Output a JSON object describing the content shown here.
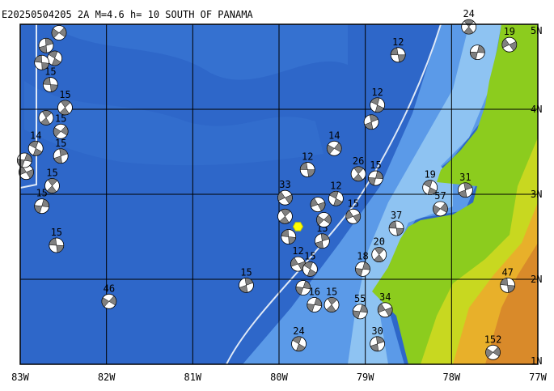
{
  "title": "E20250504205 2A  M=4.6  h=  10  SOUTH OF PANAMA",
  "lon_ticks": [
    {
      "value": -83,
      "label": "83W"
    },
    {
      "value": -82,
      "label": "82W"
    },
    {
      "value": -81,
      "label": "81W"
    },
    {
      "value": -80,
      "label": "80W"
    },
    {
      "value": -79,
      "label": "79W"
    },
    {
      "value": -78,
      "label": "78W"
    },
    {
      "value": -77,
      "label": "77W"
    }
  ],
  "lat_ticks": [
    {
      "value": 5,
      "label": "5N"
    },
    {
      "value": 4,
      "label": "4N"
    },
    {
      "value": 3,
      "label": "3N"
    },
    {
      "value": 2,
      "label": "2N"
    },
    {
      "value": 1,
      "label": "1N"
    }
  ],
  "lon_range": [
    -83,
    -77
  ],
  "lat_range": [
    1,
    5
  ],
  "epicenter": {
    "lon": -79.78,
    "lat": 2.62
  },
  "events": [
    {
      "lon": -78.62,
      "lat": 4.64,
      "depth": 12
    },
    {
      "lon": -77.8,
      "lat": 4.97,
      "depth": 24
    },
    {
      "lon": -77.7,
      "lat": 4.67,
      "depth": null
    },
    {
      "lon": -77.33,
      "lat": 4.76,
      "depth": 19
    },
    {
      "lon": -78.86,
      "lat": 4.05,
      "depth": 12
    },
    {
      "lon": -78.93,
      "lat": 3.85,
      "depth": null
    },
    {
      "lon": -79.36,
      "lat": 3.54,
      "depth": 14
    },
    {
      "lon": -79.67,
      "lat": 3.29,
      "depth": 12
    },
    {
      "lon": -79.08,
      "lat": 3.24,
      "depth": 26
    },
    {
      "lon": -78.88,
      "lat": 3.19,
      "depth": 15
    },
    {
      "lon": -79.93,
      "lat": 2.96,
      "depth": 33
    },
    {
      "lon": -78.25,
      "lat": 3.08,
      "depth": 19
    },
    {
      "lon": -77.84,
      "lat": 3.05,
      "depth": 31
    },
    {
      "lon": -78.13,
      "lat": 2.83,
      "depth": 57
    },
    {
      "lon": -78.64,
      "lat": 2.6,
      "depth": 37
    },
    {
      "lon": -78.84,
      "lat": 2.29,
      "depth": 20
    },
    {
      "lon": -79.03,
      "lat": 2.12,
      "depth": 18
    },
    {
      "lon": -79.14,
      "lat": 2.74,
      "depth": 15
    },
    {
      "lon": -79.34,
      "lat": 2.95,
      "depth": 12
    },
    {
      "lon": -80.38,
      "lat": 1.93,
      "depth": 15
    },
    {
      "lon": -81.97,
      "lat": 1.74,
      "depth": 46
    },
    {
      "lon": -82.58,
      "lat": 2.4,
      "depth": 15
    },
    {
      "lon": -82.63,
      "lat": 3.1,
      "depth": 15
    },
    {
      "lon": -82.75,
      "lat": 2.86,
      "depth": 15
    },
    {
      "lon": -82.93,
      "lat": 3.26,
      "depth": 20
    },
    {
      "lon": -82.82,
      "lat": 3.54,
      "depth": 14
    },
    {
      "lon": -82.53,
      "lat": 3.45,
      "depth": 15
    },
    {
      "lon": -82.53,
      "lat": 3.74,
      "depth": 15
    },
    {
      "lon": -82.65,
      "lat": 4.29,
      "depth": 15
    },
    {
      "lon": -82.48,
      "lat": 4.02,
      "depth": 15
    },
    {
      "lon": -79.06,
      "lat": 1.62,
      "depth": 55
    },
    {
      "lon": -78.77,
      "lat": 1.64,
      "depth": 34
    },
    {
      "lon": -79.77,
      "lat": 1.24,
      "depth": 24
    },
    {
      "lon": -78.86,
      "lat": 1.24,
      "depth": 30
    },
    {
      "lon": -77.52,
      "lat": 1.14,
      "depth": 152
    },
    {
      "lon": -77.35,
      "lat": 1.93,
      "depth": 47
    },
    {
      "lon": -79.39,
      "lat": 1.7,
      "depth": 15
    },
    {
      "lon": -79.59,
      "lat": 1.7,
      "depth": 16
    },
    {
      "lon": -79.78,
      "lat": 2.18,
      "depth": 12
    },
    {
      "lon": -79.64,
      "lat": 2.12,
      "depth": 15
    },
    {
      "lon": -79.5,
      "lat": 2.45,
      "depth": 15
    },
    {
      "lon": -79.48,
      "lat": 2.7,
      "depth": null
    },
    {
      "lon": -79.89,
      "lat": 2.5,
      "depth": null
    },
    {
      "lon": -79.93,
      "lat": 2.74,
      "depth": null
    },
    {
      "lon": -79.72,
      "lat": 1.9,
      "depth": null
    },
    {
      "lon": -79.55,
      "lat": 2.88,
      "depth": null
    },
    {
      "lon": -82.6,
      "lat": 4.6,
      "depth": null
    },
    {
      "lon": -82.7,
      "lat": 4.75,
      "depth": null
    },
    {
      "lon": -82.55,
      "lat": 4.9,
      "depth": null
    },
    {
      "lon": -82.75,
      "lat": 4.55,
      "depth": null
    },
    {
      "lon": -82.7,
      "lat": 3.9,
      "depth": null
    },
    {
      "lon": -82.95,
      "lat": 3.4,
      "depth": null
    }
  ]
}
